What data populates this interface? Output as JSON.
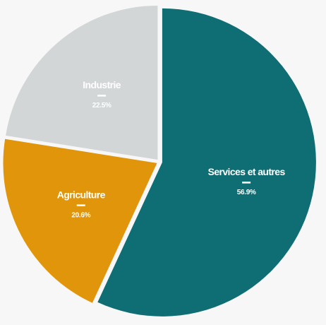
{
  "chart_data": {
    "type": "pie",
    "title": "",
    "slices": [
      {
        "label": "Services et autres",
        "value": 56.9,
        "value_label": "56.9%",
        "color": "#0f6e74"
      },
      {
        "label": "Agriculture",
        "value": 20.6,
        "value_label": "20.6%",
        "color": "#e0950b"
      },
      {
        "label": "Industrie",
        "value": 22.5,
        "value_label": "22.5%",
        "color": "#d2d6d6"
      }
    ],
    "start_angle_deg": 0,
    "direction": "clockwise",
    "exploded": true,
    "legend": "none"
  },
  "background_color": "#f7f7f7"
}
